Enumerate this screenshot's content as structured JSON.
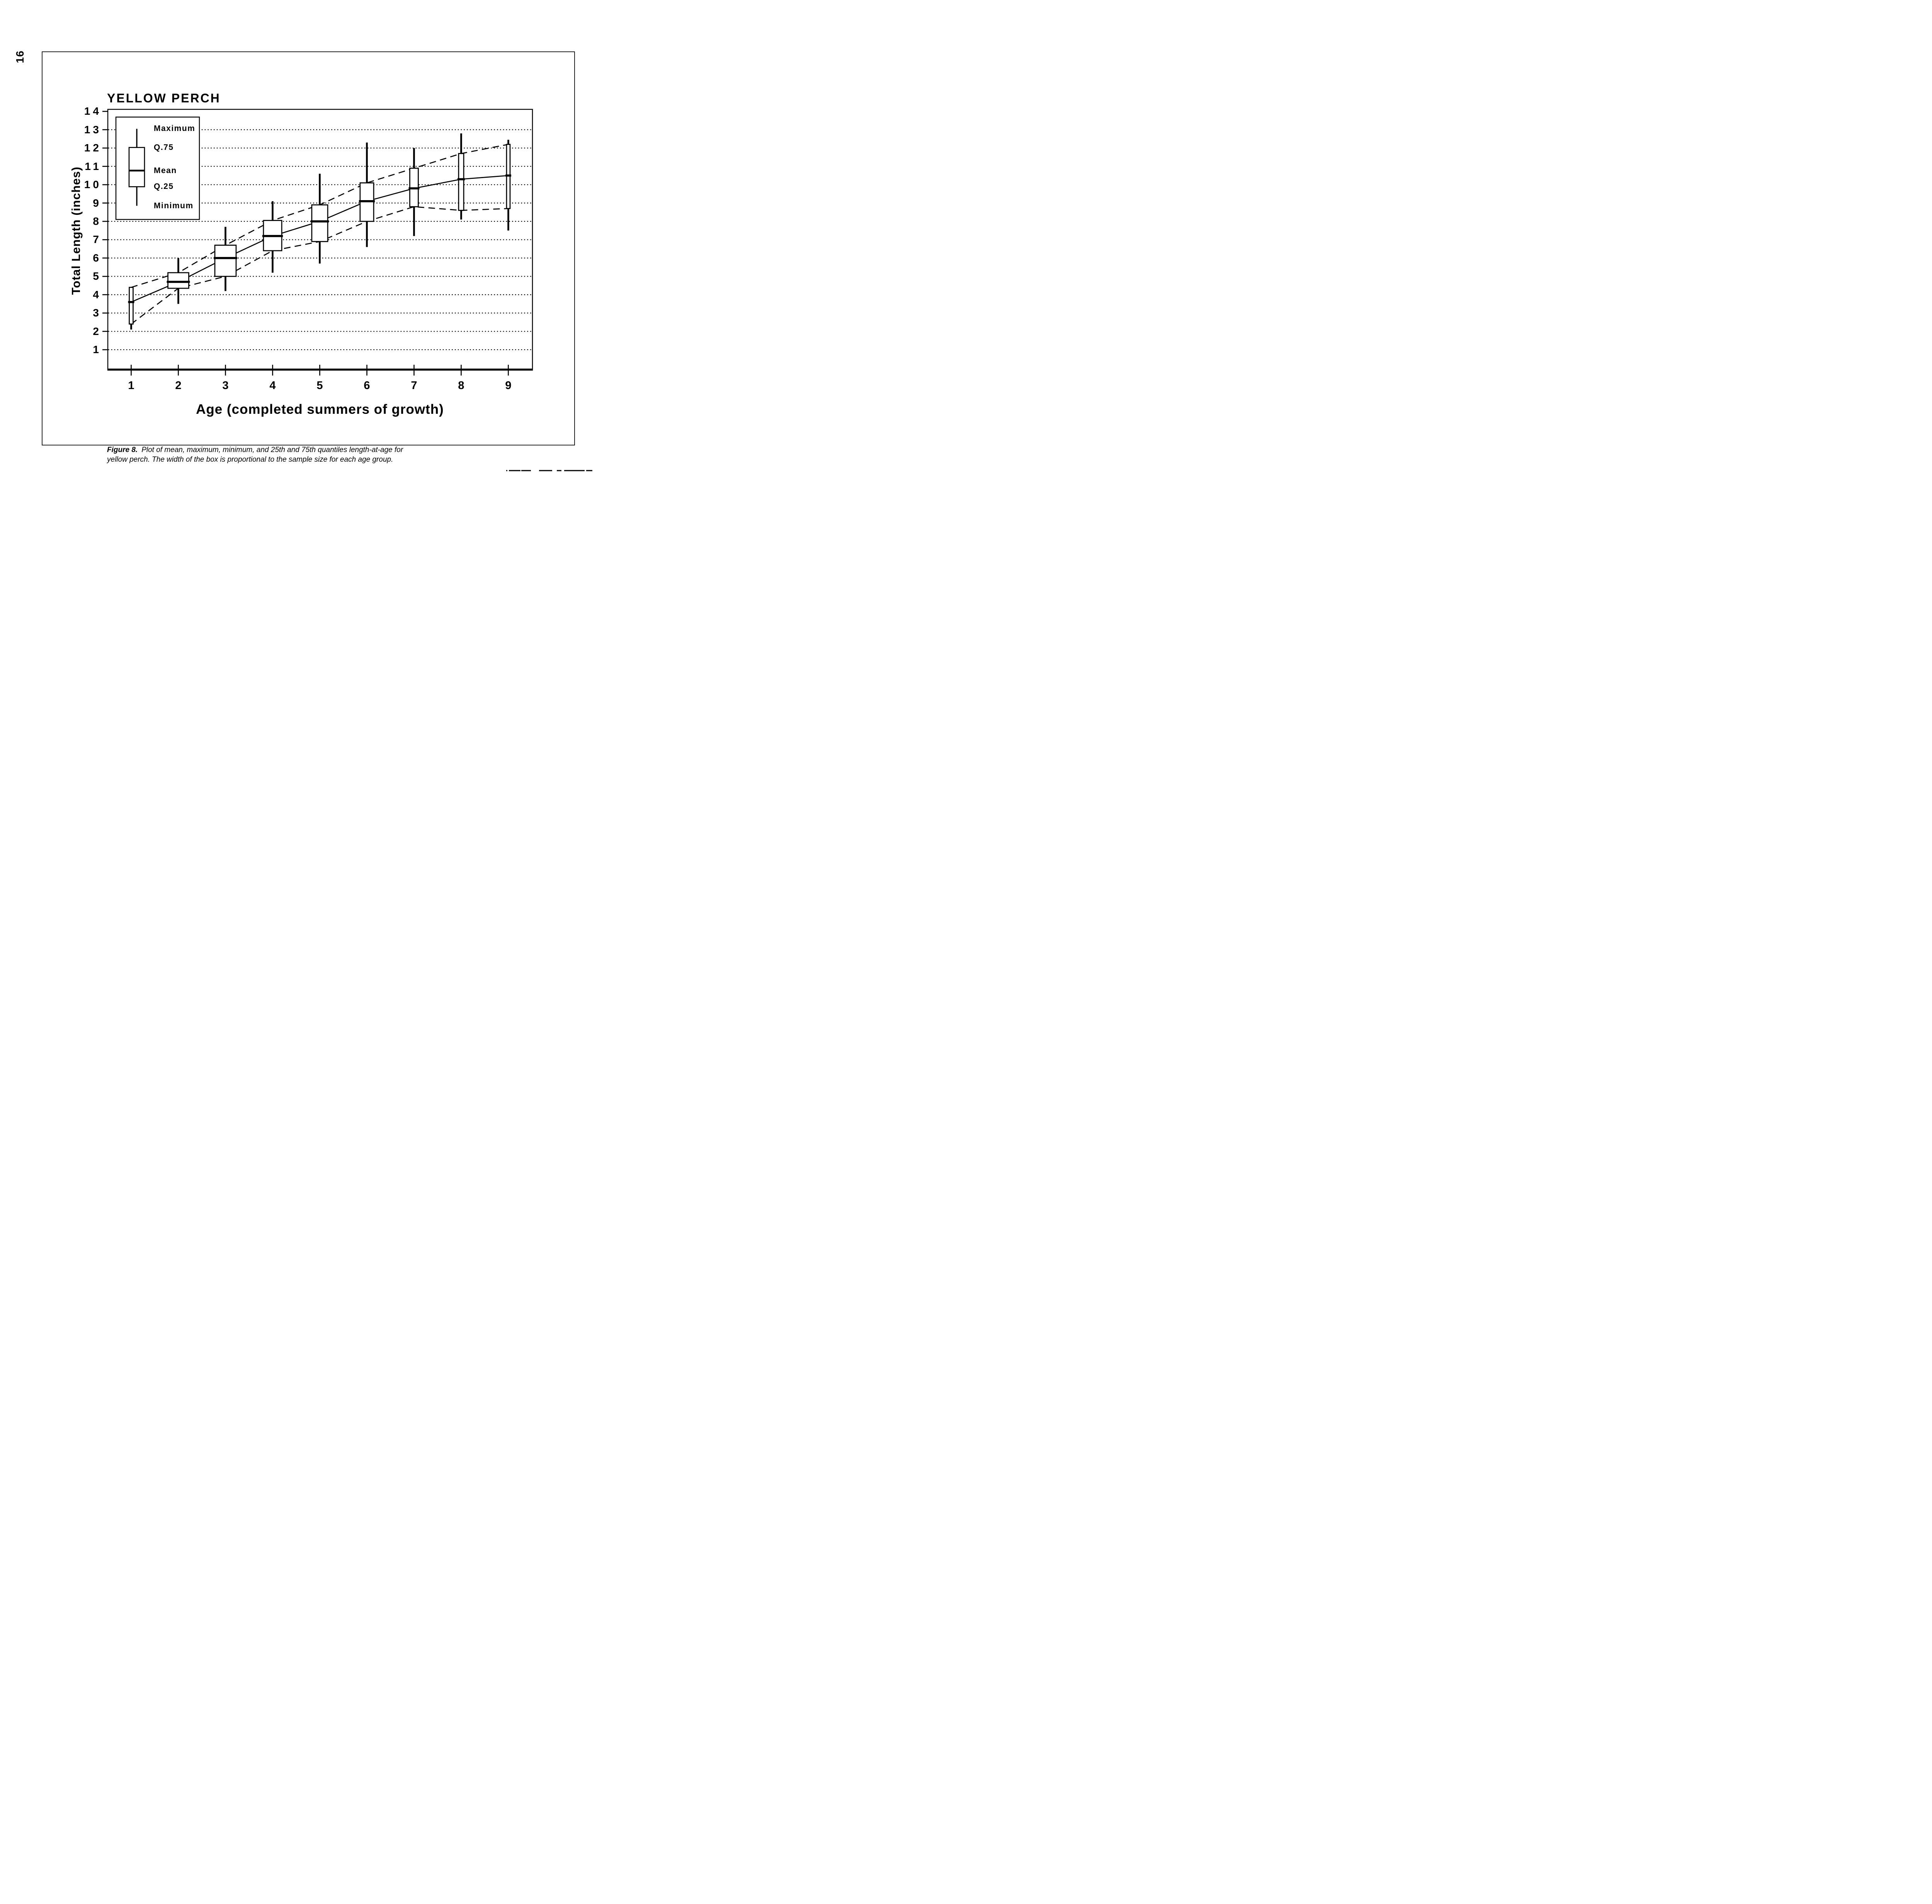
{
  "page": {
    "number": "16"
  },
  "chart": {
    "title": "YELLOW PERCH",
    "x_axis_title": "Age (completed summers of growth)",
    "y_axis_title": "Total Length  (inches)",
    "y_tick_labels": [
      "14",
      "13",
      "12",
      "11",
      "10",
      "9",
      "8",
      "7",
      "6",
      "5",
      "4",
      "3",
      "2",
      "1"
    ],
    "x_tick_labels": [
      "1",
      "2",
      "3",
      "4",
      "5",
      "6",
      "7",
      "8",
      "9"
    ],
    "legend_items": [
      "Maximum",
      "Q.75",
      "Mean",
      "Q.25",
      "Minimum"
    ]
  },
  "chart_data": {
    "type": "box",
    "title": "YELLOW PERCH",
    "xlabel": "Age (completed summers of growth)",
    "ylabel": "Total Length (inches)",
    "x": [
      1,
      2,
      3,
      4,
      5,
      6,
      7,
      8,
      9
    ],
    "y_ticks": [
      1,
      2,
      3,
      4,
      5,
      6,
      7,
      8,
      9,
      10,
      11,
      12,
      13,
      14
    ],
    "xlim": [
      0.5,
      9.5
    ],
    "ylim": [
      0,
      14.1
    ],
    "grid": "horizontal dotted lines at integer y values 1-13",
    "legend_position": "upper-left",
    "legend_entries": [
      "Maximum",
      "Q.75",
      "Mean",
      "Q.25",
      "Minimum"
    ],
    "connectors": {
      "solid_line": "mean",
      "dashed_lines": [
        "q75",
        "q25"
      ]
    },
    "box_width_rule": "box width proportional to sample size for each age group",
    "series": [
      {
        "age": 1,
        "min": 2.1,
        "q25": 2.4,
        "mean": 3.6,
        "q75": 4.4,
        "max": 4.4,
        "width_rel": 0.18
      },
      {
        "age": 2,
        "min": 3.5,
        "q25": 4.35,
        "mean": 4.7,
        "q75": 5.2,
        "max": 6.0,
        "width_rel": 0.98
      },
      {
        "age": 3,
        "min": 4.2,
        "q25": 5.0,
        "mean": 6.0,
        "q75": 6.7,
        "max": 7.7,
        "width_rel": 1.0
      },
      {
        "age": 4,
        "min": 5.2,
        "q25": 6.4,
        "mean": 7.2,
        "q75": 8.05,
        "max": 9.1,
        "width_rel": 0.86
      },
      {
        "age": 5,
        "min": 5.7,
        "q25": 6.9,
        "mean": 8.0,
        "q75": 8.9,
        "max": 10.6,
        "width_rel": 0.75
      },
      {
        "age": 6,
        "min": 6.6,
        "q25": 8.0,
        "mean": 9.1,
        "q75": 10.1,
        "max": 12.3,
        "width_rel": 0.64
      },
      {
        "age": 7,
        "min": 7.2,
        "q25": 8.8,
        "mean": 9.8,
        "q75": 10.9,
        "max": 12.0,
        "width_rel": 0.4
      },
      {
        "age": 8,
        "min": 8.1,
        "q25": 8.6,
        "mean": 10.3,
        "q75": 11.7,
        "max": 12.8,
        "width_rel": 0.24
      },
      {
        "age": 9,
        "min": 7.5,
        "q25": 8.7,
        "mean": 10.5,
        "q75": 12.2,
        "max": 12.45,
        "width_rel": 0.16
      }
    ]
  },
  "caption": {
    "label": "Figure 8.",
    "text": "Plot of mean, maximum, minimum, and 25th and 75th quantiles length-at-age for yellow perch.  The width of the box is proportional to the sample size for each age group."
  }
}
